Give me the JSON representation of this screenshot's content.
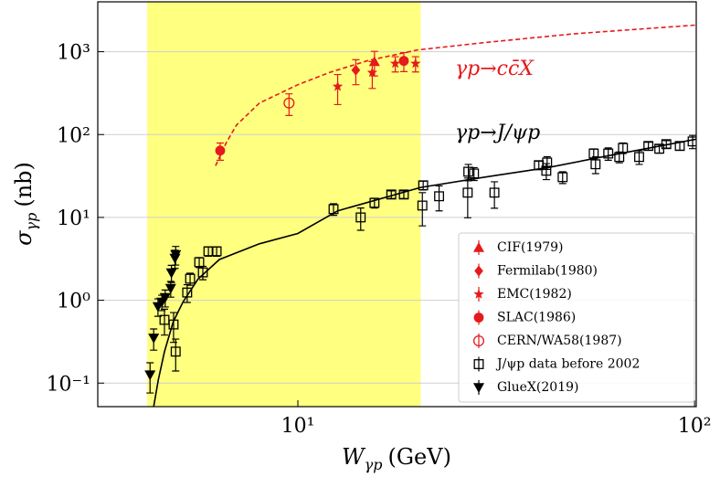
{
  "chart_data": {
    "type": "scatter",
    "log_x": true,
    "log_y": true,
    "grid": true,
    "legend_position": "lower right",
    "x_label": {
      "symbol": "W",
      "subscript": "γp",
      "unit": "(GeV)"
    },
    "y_label": {
      "symbol": "σ",
      "subscript": "γp",
      "unit": "(nb)"
    },
    "xlim": [
      3.13,
      101
    ],
    "ylim": [
      0.052,
      4000
    ],
    "xticks": [
      {
        "value": 10,
        "label": "10¹"
      },
      {
        "value": 100,
        "label": "10²"
      }
    ],
    "yticks": [
      {
        "value": 0.1,
        "label": "10⁻¹"
      },
      {
        "value": 1,
        "label": "10⁰"
      },
      {
        "value": 10,
        "label": "10¹"
      },
      {
        "value": 100,
        "label": "10²"
      },
      {
        "value": 1000,
        "label": "10³"
      }
    ],
    "shaded_range": [
      4.17,
      20.4
    ],
    "shaded_color": "#ffff80",
    "lines": [
      {
        "label": "γp→cc̄X",
        "color": "#e41a1c",
        "dashed": true,
        "x": [
          6.2,
          6.6,
          7,
          8,
          10,
          12,
          15,
          20,
          30,
          50,
          101
        ],
        "values": [
          42,
          80,
          130,
          240,
          400,
          560,
          780,
          1050,
          1300,
          1650,
          2100
        ]
      },
      {
        "label": "γp→J/ψp",
        "color": "#000000",
        "dashed": false,
        "x": [
          4.33,
          4.45,
          4.61,
          4.85,
          5.13,
          5.6,
          6.34,
          8,
          10,
          12.6,
          20.4,
          30,
          42.8,
          60,
          101
        ],
        "values": [
          0.052,
          0.11,
          0.24,
          0.55,
          0.95,
          1.8,
          3.1,
          4.8,
          6.4,
          12,
          23,
          31,
          40,
          55,
          88
        ]
      }
    ],
    "series": [
      {
        "name": "CIF(1979)",
        "color": "#e41a1c",
        "marker": "triangle-up",
        "x": [
          15.6
        ],
        "values": [
          760
        ],
        "errors": [
          250
        ]
      },
      {
        "name": "Fermilab(1980)",
        "color": "#e41a1c",
        "marker": "diamond",
        "x": [
          14.0
        ],
        "values": [
          600
        ],
        "errors": [
          200
        ]
      },
      {
        "name": "EMC(1982)",
        "color": "#e41a1c",
        "marker": "star",
        "x": [
          12.6,
          15.4,
          17.6,
          19.8
        ],
        "values": [
          380,
          560,
          720,
          720
        ],
        "errors": [
          150,
          200,
          150,
          150
        ]
      },
      {
        "name": "SLAC(1986)",
        "color": "#e41a1c",
        "marker": "circle",
        "x": [
          6.37,
          18.5
        ],
        "values": [
          64,
          775
        ],
        "errors": [
          15,
          200
        ]
      },
      {
        "name": "CERN/WA58(1987)",
        "color": "#e41a1c",
        "marker": "circle-open",
        "x": [
          9.5
        ],
        "values": [
          240
        ],
        "errors": [
          70
        ]
      },
      {
        "name": "J/ψp data before 2002",
        "color": "#000000",
        "marker": "square-open",
        "x": [
          4.61,
          4.86,
          4.92,
          5.26,
          5.35,
          5.64,
          5.76,
          5.95,
          6.24,
          12.3,
          14.4,
          15.6,
          17.2,
          18.5,
          20.7,
          20.6,
          22.7,
          26.8,
          26.9,
          27.8,
          31.3,
          40.5,
          42.5,
          42.3,
          46.5,
          55.7,
          56.3,
          60.6,
          64.6,
          66.0,
          72.5,
          76.5,
          81.5,
          84.9,
          91.8,
          98.9
        ],
        "values": [
          0.58,
          0.51,
          0.24,
          1.24,
          1.82,
          2.88,
          2.17,
          3.9,
          3.9,
          12.6,
          10,
          15,
          18.9,
          18.9,
          24.4,
          13.9,
          18,
          19.9,
          35.6,
          33.9,
          19.9,
          42.7,
          46,
          36.6,
          30.6,
          59,
          43.8,
          59,
          53.6,
          69,
          53.6,
          72.8,
          67.5,
          76.6,
          72.8,
          82.6
        ],
        "errors": [
          0.2,
          0.2,
          0.1,
          0.3,
          0.3,
          0.4,
          0.4,
          0.5,
          0.5,
          2,
          3,
          2,
          2,
          2,
          3,
          6,
          6,
          10,
          8,
          6,
          7,
          5,
          8,
          8,
          5,
          8,
          10,
          10,
          8,
          10,
          10,
          8,
          8,
          8,
          8,
          15
        ]
      },
      {
        "name": "GlueX(2019)",
        "color": "#000000",
        "marker": "triangle-down",
        "x": [
          4.24,
          4.33,
          4.44,
          4.54,
          4.63,
          4.78,
          4.8,
          4.9,
          4.92
        ],
        "values": [
          0.126,
          0.35,
          0.84,
          0.95,
          1.08,
          1.39,
          2.14,
          3.22,
          3.56
        ],
        "errors": [
          0.05,
          0.1,
          0.2,
          0.2,
          0.25,
          0.3,
          0.5,
          0.8,
          0.9
        ]
      }
    ]
  }
}
